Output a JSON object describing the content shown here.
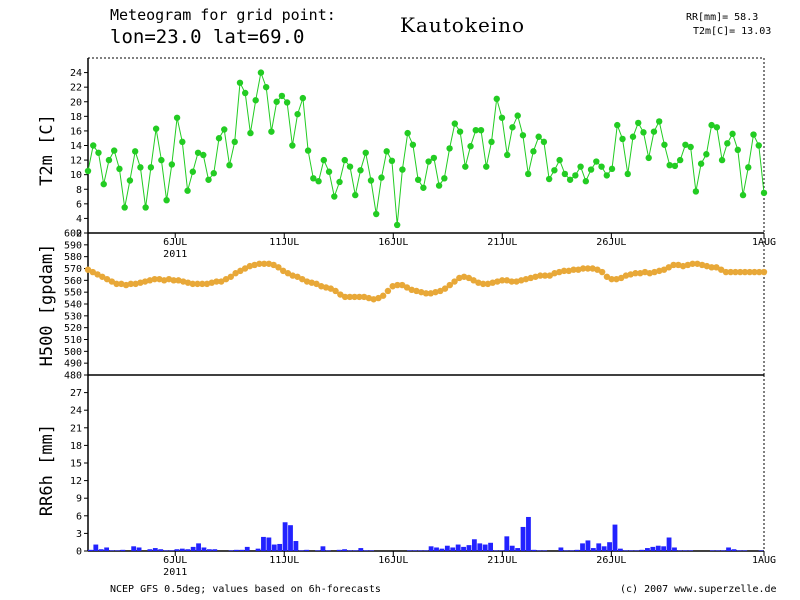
{
  "header": {
    "line1": "Meteogram for grid point:",
    "line2": "lon=23.0 lat=69.0",
    "place": "Kautokeino",
    "rr_total": "RR[mm]= 58.3",
    "t2m_mean": "T2m[C]= 13.03"
  },
  "footer": {
    "source": "NCEP GFS 0.5deg; values based on 6h-forecasts",
    "copyright": "(c) 2007 www.superzelle.de"
  },
  "colors": {
    "t2m": "#22cc22",
    "h500": "#e8a838",
    "rr6h": "#2222ff",
    "frame": "#000000"
  },
  "chart_data": [
    {
      "type": "line",
      "ylabel": "T2m [C]",
      "ylim": [
        2,
        26
      ],
      "yticks": [
        "2",
        "4",
        "6",
        "8",
        "10",
        "12",
        "14",
        "16",
        "18",
        "20",
        "22",
        "24"
      ],
      "xlim": [
        0,
        124
      ],
      "xticks": [
        {
          "t": 16,
          "label": "6JUL",
          "sub": "2011"
        },
        {
          "t": 36,
          "label": "11JUL",
          "sub": ""
        },
        {
          "t": 56,
          "label": "16JUL",
          "sub": ""
        },
        {
          "t": 76,
          "label": "21JUL",
          "sub": ""
        },
        {
          "t": 96,
          "label": "26JUL",
          "sub": ""
        },
        {
          "t": 124,
          "label": "1AUG",
          "sub": ""
        }
      ],
      "series": [
        {
          "values": [
            10.5,
            14,
            13,
            8.7,
            12,
            13.3,
            10.8,
            5.5,
            9.2,
            13.2,
            11,
            5.5,
            11,
            16.3,
            12,
            6.5,
            11.4,
            17.8,
            14.5,
            7.8,
            10.4,
            13,
            12.7,
            9.3,
            10.2,
            15,
            16.2,
            11.3,
            14.5,
            22.6,
            21.2,
            15.7,
            20.2,
            24,
            22,
            15.9,
            20,
            20.8,
            19.9,
            14,
            18.3,
            20.5,
            13.3,
            9.5,
            9.1,
            12,
            10.4,
            7,
            9,
            12,
            11.1,
            7.2,
            10.6,
            13,
            9.2,
            4.6,
            9.6,
            13.2,
            11.9,
            3.1,
            10.7,
            15.7,
            14.1,
            9.3,
            8.2,
            11.8,
            12.3,
            8.5,
            9.5,
            13.6,
            17,
            15.9,
            11.1,
            13.9,
            16.1,
            16.1,
            11.1,
            14.5,
            20.4,
            17.8,
            12.7,
            16.5,
            18.1,
            15.4,
            10.1,
            13.2,
            15.2,
            14.5,
            9.4,
            10.6,
            12,
            10.1,
            9.3,
            9.9,
            11.1,
            9.1,
            10.7,
            11.8,
            11.1,
            9.9,
            10.8,
            16.8,
            14.9,
            10.1,
            15.2,
            17.1,
            15.8,
            12.3,
            15.9,
            17.3,
            14.1,
            11.3,
            11.2,
            12,
            14.1,
            13.8,
            7.7,
            11.5,
            12.8,
            16.8,
            16.5,
            12,
            14.3,
            15.6,
            13.4,
            7.2,
            11,
            15.5,
            14,
            7.5
          ]
        }
      ]
    },
    {
      "type": "scatter",
      "ylabel": "H500 [gpdam]",
      "ylim": [
        480,
        600
      ],
      "yticks": [
        "480",
        "490",
        "500",
        "510",
        "520",
        "530",
        "540",
        "550",
        "560",
        "570",
        "580",
        "590",
        "600"
      ],
      "xlim": [
        0,
        124
      ],
      "series": [
        {
          "values": [
            569,
            567,
            565,
            563,
            561,
            559,
            557,
            557,
            556,
            557,
            557,
            558,
            559,
            560,
            561,
            561,
            560,
            561,
            560,
            560,
            559,
            558,
            557,
            557,
            557,
            557,
            558,
            559,
            559,
            561,
            563,
            566,
            568,
            570,
            572,
            573,
            574,
            574,
            574,
            573,
            571,
            568,
            566,
            564,
            563,
            561,
            559,
            558,
            557,
            555,
            554,
            553,
            551,
            548,
            546,
            546,
            546,
            546,
            546,
            545,
            544,
            545,
            547,
            551,
            555,
            556,
            556,
            554,
            552,
            551,
            550,
            549,
            549,
            550,
            551,
            553,
            556,
            559,
            562,
            563,
            562,
            560,
            558,
            557,
            557,
            558,
            559,
            560,
            560,
            559,
            559,
            560,
            561,
            562,
            563,
            564,
            564,
            564,
            566,
            567,
            568,
            568,
            569,
            569,
            570,
            570,
            570,
            569,
            567,
            563,
            561,
            561,
            562,
            564,
            565,
            566,
            566,
            567,
            566,
            567,
            568,
            569,
            571,
            573,
            573,
            572,
            573,
            574,
            574,
            573,
            572,
            571,
            571,
            569,
            567,
            567,
            567,
            567,
            567,
            567,
            567,
            567,
            567
          ]
        }
      ]
    },
    {
      "type": "bar",
      "ylabel": "RR6h [mm]",
      "ylim": [
        0,
        30
      ],
      "yticks": [
        "0",
        "3",
        "6",
        "9",
        "12",
        "15",
        "18",
        "21",
        "24",
        "27"
      ],
      "xlim": [
        0,
        124
      ],
      "xticks": [
        {
          "t": 16,
          "label": "6JUL",
          "sub": "2011"
        },
        {
          "t": 36,
          "label": "11JUL",
          "sub": ""
        },
        {
          "t": 56,
          "label": "16JUL",
          "sub": ""
        },
        {
          "t": 76,
          "label": "21JUL",
          "sub": ""
        },
        {
          "t": 96,
          "label": "26JUL",
          "sub": ""
        },
        {
          "t": 124,
          "label": "1AUG",
          "sub": ""
        }
      ],
      "series": [
        {
          "values": [
            0.2,
            1.1,
            0.3,
            0.6,
            0.1,
            0.1,
            0.2,
            0,
            0.8,
            0.6,
            0,
            0.3,
            0.5,
            0.3,
            0.1,
            0.1,
            0.3,
            0.4,
            0.3,
            0.7,
            1.3,
            0.6,
            0.3,
            0.3,
            0,
            0,
            0.1,
            0.2,
            0.2,
            0.7,
            0,
            0.4,
            2.4,
            2.3,
            1.1,
            1.2,
            4.9,
            4.4,
            1.7,
            0.1,
            0.2,
            0,
            0.1,
            0.8,
            0.1,
            0,
            0.2,
            0.3,
            0.1,
            0.1,
            0.5,
            0.1,
            0.1,
            0,
            0,
            0,
            0,
            0,
            0,
            0.1,
            0.1,
            0.1,
            0.1,
            0.8,
            0.6,
            0.4,
            0.9,
            0.6,
            1.1,
            0.7,
            1,
            2,
            1.3,
            1.1,
            1.4,
            0.1,
            0.1,
            2.5,
            0.9,
            0.5,
            4.1,
            5.8,
            0.2,
            0.1,
            0.1,
            0,
            0,
            0.6,
            0.1,
            0.1,
            0.2,
            1.3,
            1.8,
            0.5,
            1.3,
            0.8,
            1.5,
            4.5,
            0.4,
            0.1,
            0.1,
            0.1,
            0.2,
            0.5,
            0.7,
            0.9,
            0.8,
            2.3,
            0.6,
            0.1,
            0.1,
            0.1,
            0,
            0,
            0,
            0.1,
            0.1,
            0.1,
            0.6,
            0.3,
            0.1,
            0.1,
            0,
            0,
            0.1
          ]
        }
      ]
    }
  ]
}
